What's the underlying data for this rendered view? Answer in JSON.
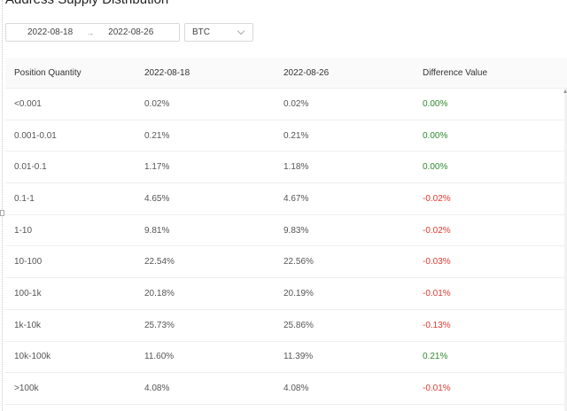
{
  "page": {
    "title": "Address Supply Distribution"
  },
  "filters": {
    "start_date": "2022-08-18",
    "separator": "→",
    "end_date": "2022-08-26",
    "asset": "BTC"
  },
  "table": {
    "headers": [
      "Position Quantity",
      "2022-08-18",
      "2022-08-26",
      "Difference Value"
    ],
    "rows": [
      {
        "range": "<0.001",
        "start": "0.02%",
        "end": "0.02%",
        "diff": "0.00%",
        "trend": "pos"
      },
      {
        "range": "0.001-0.01",
        "start": "0.21%",
        "end": "0.21%",
        "diff": "0.00%",
        "trend": "pos"
      },
      {
        "range": "0.01-0.1",
        "start": "1.17%",
        "end": "1.18%",
        "diff": "0.00%",
        "trend": "pos"
      },
      {
        "range": "0.1-1",
        "start": "4.65%",
        "end": "4.67%",
        "diff": "-0.02%",
        "trend": "neg"
      },
      {
        "range": "1-10",
        "start": "9.81%",
        "end": "9.83%",
        "diff": "-0.02%",
        "trend": "neg"
      },
      {
        "range": "10-100",
        "start": "22.54%",
        "end": "22.56%",
        "diff": "-0.03%",
        "trend": "neg"
      },
      {
        "range": "100-1k",
        "start": "20.18%",
        "end": "20.19%",
        "diff": "-0.01%",
        "trend": "neg"
      },
      {
        "range": "1k-10k",
        "start": "25.73%",
        "end": "25.86%",
        "diff": "-0.13%",
        "trend": "neg"
      },
      {
        "range": "10k-100k",
        "start": "11.60%",
        "end": "11.39%",
        "diff": "0.21%",
        "trend": "pos"
      },
      {
        "range": ">100k",
        "start": "4.08%",
        "end": "4.08%",
        "diff": "-0.01%",
        "trend": "neg"
      }
    ]
  },
  "colors": {
    "positive": "#2e8b2e",
    "negative": "#e03a2f",
    "border": "#d9d9d9"
  },
  "icons": {
    "select_arrow": "chevron-down-icon",
    "scroll_up": "arrow-up-icon"
  }
}
